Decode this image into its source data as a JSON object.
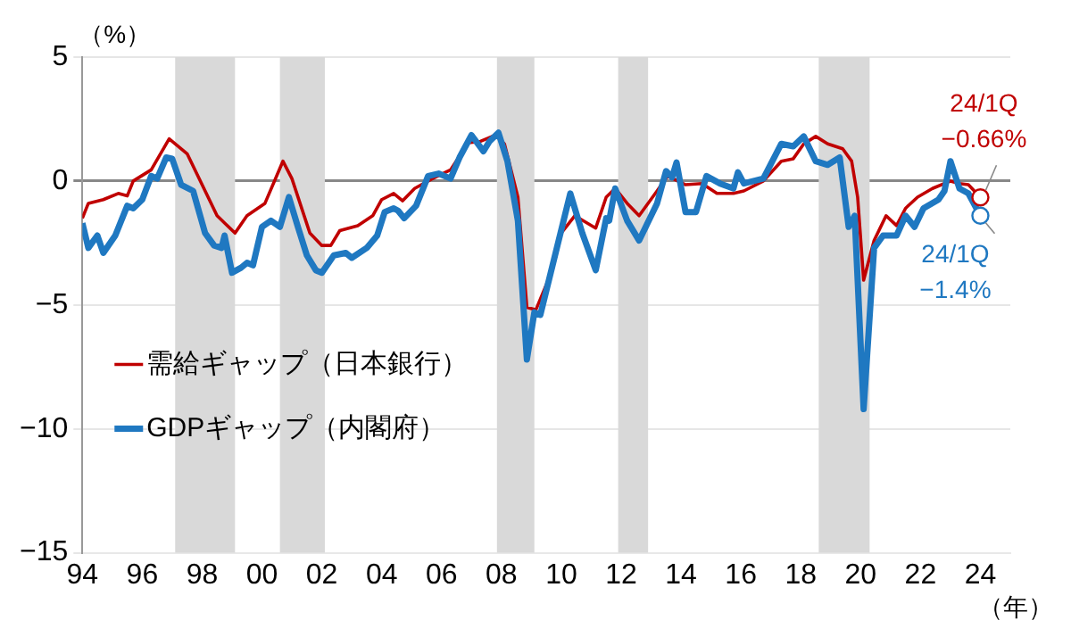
{
  "chart_data": {
    "type": "line",
    "ylabel": "（%）",
    "xlabel": "（年）",
    "xlim": [
      1994,
      2025
    ],
    "ylim": [
      -15,
      5
    ],
    "xticks": [
      {
        "value": 1994,
        "label": "94"
      },
      {
        "value": 1996,
        "label": "96"
      },
      {
        "value": 1998,
        "label": "98"
      },
      {
        "value": 2000,
        "label": "00"
      },
      {
        "value": 2002,
        "label": "02"
      },
      {
        "value": 2004,
        "label": "04"
      },
      {
        "value": 2006,
        "label": "06"
      },
      {
        "value": 2008,
        "label": "08"
      },
      {
        "value": 2010,
        "label": "10"
      },
      {
        "value": 2012,
        "label": "12"
      },
      {
        "value": 2014,
        "label": "14"
      },
      {
        "value": 2016,
        "label": "16"
      },
      {
        "value": 2018,
        "label": "18"
      },
      {
        "value": 2020,
        "label": "20"
      },
      {
        "value": 2022,
        "label": "22"
      },
      {
        "value": 2024,
        "label": "24"
      }
    ],
    "yticks": [
      5,
      0,
      {
        "value": -5,
        "label": "−5"
      },
      {
        "value": -10,
        "label": "−10"
      },
      {
        "value": -15,
        "label": "−15"
      }
    ],
    "grid": "y",
    "legend": "left",
    "bands": [
      {
        "axis": "x",
        "from": 1997.1,
        "to": 1999.1,
        "color": "#d9d9d9"
      },
      {
        "axis": "x",
        "from": 2000.6,
        "to": 2002.1,
        "color": "#d9d9d9"
      },
      {
        "axis": "x",
        "from": 2007.85,
        "to": 2009.1,
        "color": "#d9d9d9"
      },
      {
        "axis": "x",
        "from": 2011.9,
        "to": 2012.9,
        "color": "#d9d9d9"
      },
      {
        "axis": "x",
        "from": 2018.6,
        "to": 2020.3,
        "color": "#d9d9d9"
      }
    ],
    "series": [
      {
        "name": "需給ギャップ（日本銀行）",
        "color": "#c00000",
        "x": [
          1994.0,
          1994.2,
          1994.7,
          1995.2,
          1995.5,
          1995.7,
          1996.3,
          1996.9,
          1997.5,
          1998.5,
          1999.1,
          1999.5,
          2000.1,
          2000.7,
          2001.0,
          2001.6,
          2002.0,
          2002.3,
          2002.6,
          2003.2,
          2003.7,
          2004.0,
          2004.4,
          2004.7,
          2005.1,
          2005.7,
          2006.3,
          2006.9,
          2007.3,
          2007.8,
          2008.1,
          2008.55,
          2008.85,
          2009.15,
          2009.7,
          2010.0,
          2010.45,
          2011.15,
          2011.5,
          2011.8,
          2012.2,
          2012.6,
          2013.2,
          2013.55,
          2014.15,
          2014.7,
          2015.2,
          2015.75,
          2016.1,
          2016.75,
          2017.35,
          2017.75,
          2018.1,
          2018.5,
          2018.9,
          2019.4,
          2019.7,
          2019.9,
          2020.1,
          2020.45,
          2020.85,
          2021.2,
          2021.5,
          2021.9,
          2022.4,
          2023.0,
          2023.3,
          2023.6,
          2024.0
        ],
        "values": [
          -1.5,
          -0.9,
          -0.75,
          -0.5,
          -0.6,
          0,
          0.45,
          1.7,
          1.1,
          -1.4,
          -2.1,
          -1.4,
          -0.9,
          0.8,
          0.1,
          -2.1,
          -2.6,
          -2.6,
          -2.0,
          -1.8,
          -1.4,
          -0.75,
          -0.5,
          -0.8,
          -0.3,
          0.1,
          0.45,
          1.55,
          1.6,
          1.85,
          1.5,
          -0.65,
          -5.1,
          -5.2,
          -3.6,
          -2.1,
          -1.4,
          -1.9,
          -0.65,
          -0.3,
          -0.9,
          -1.4,
          -0.4,
          0.2,
          -0.15,
          -0.1,
          -0.5,
          -0.5,
          -0.4,
          0,
          0.8,
          0.9,
          1.5,
          1.8,
          1.5,
          1.3,
          0.8,
          -0.65,
          -4.0,
          -2.4,
          -1.4,
          -1.8,
          -1.1,
          -0.65,
          -0.3,
          0,
          -0.1,
          -0.15,
          -0.66
        ]
      },
      {
        "name": "GDPギャップ（内閣府）",
        "color": "#1f78c1",
        "x": [
          1994.0,
          1994.2,
          1994.5,
          1994.7,
          1995.1,
          1995.5,
          1995.7,
          1996.0,
          1996.3,
          1996.5,
          1996.8,
          1997.0,
          1997.3,
          1997.7,
          1998.1,
          1998.4,
          1998.65,
          1998.75,
          1999.0,
          1999.3,
          1999.5,
          1999.7,
          2000.0,
          2000.3,
          2000.6,
          2000.9,
          2001.2,
          2001.5,
          2001.8,
          2002.0,
          2002.4,
          2002.8,
          2003.0,
          2003.5,
          2003.85,
          2004.1,
          2004.4,
          2004.55,
          2004.75,
          2005.15,
          2005.55,
          2005.9,
          2006.3,
          2006.6,
          2007.0,
          2007.4,
          2007.6,
          2007.9,
          2008.2,
          2008.55,
          2008.85,
          2009.1,
          2009.3,
          2010.3,
          2010.7,
          2011.15,
          2011.5,
          2011.6,
          2011.8,
          2012.2,
          2012.6,
          2013.2,
          2013.5,
          2013.7,
          2013.85,
          2014.15,
          2014.5,
          2014.85,
          2015.3,
          2015.75,
          2015.9,
          2016.1,
          2016.75,
          2017.35,
          2017.75,
          2018.1,
          2018.5,
          2018.9,
          2019.3,
          2019.6,
          2019.8,
          2020.1,
          2020.45,
          2020.75,
          2021.2,
          2021.5,
          2021.8,
          2022.1,
          2022.6,
          2022.8,
          2023.0,
          2023.3,
          2023.6,
          2024.0
        ],
        "values": [
          -1.7,
          -2.7,
          -2.2,
          -2.9,
          -2.2,
          -1.0,
          -1.1,
          -0.75,
          0.2,
          0.1,
          0.95,
          0.9,
          -0.15,
          -0.4,
          -2.1,
          -2.6,
          -2.7,
          -2.2,
          -3.7,
          -3.5,
          -3.3,
          -3.4,
          -1.85,
          -1.6,
          -1.85,
          -0.65,
          -1.85,
          -3.0,
          -3.6,
          -3.7,
          -3.0,
          -2.9,
          -3.1,
          -2.7,
          -2.2,
          -1.25,
          -1.1,
          -1.2,
          -1.5,
          -1.0,
          0.2,
          0.3,
          0.1,
          0.95,
          1.85,
          1.2,
          1.6,
          1.95,
          0.8,
          -1.6,
          -7.2,
          -5.3,
          -5.4,
          -0.5,
          -2.1,
          -3.6,
          -1.5,
          -1.6,
          -0.3,
          -1.6,
          -2.4,
          -0.9,
          0.4,
          0.15,
          0.75,
          -1.25,
          -1.25,
          0.2,
          -0.1,
          -0.3,
          0.35,
          -0.1,
          0.1,
          1.5,
          1.4,
          1.8,
          0.8,
          0.65,
          0.95,
          -1.85,
          -1.4,
          -9.2,
          -2.7,
          -2.2,
          -2.2,
          -1.4,
          -1.85,
          -1.1,
          -0.75,
          -0.4,
          0.8,
          -0.3,
          -0.5,
          -1.4
        ]
      }
    ],
    "annotations": [
      {
        "text": "24/1Q\n−0.66%",
        "x": 2024.0,
        "y": -0.66
      },
      {
        "text": "24/1Q\n−1.4%",
        "x": 2024.0,
        "y": -1.4
      }
    ]
  }
}
